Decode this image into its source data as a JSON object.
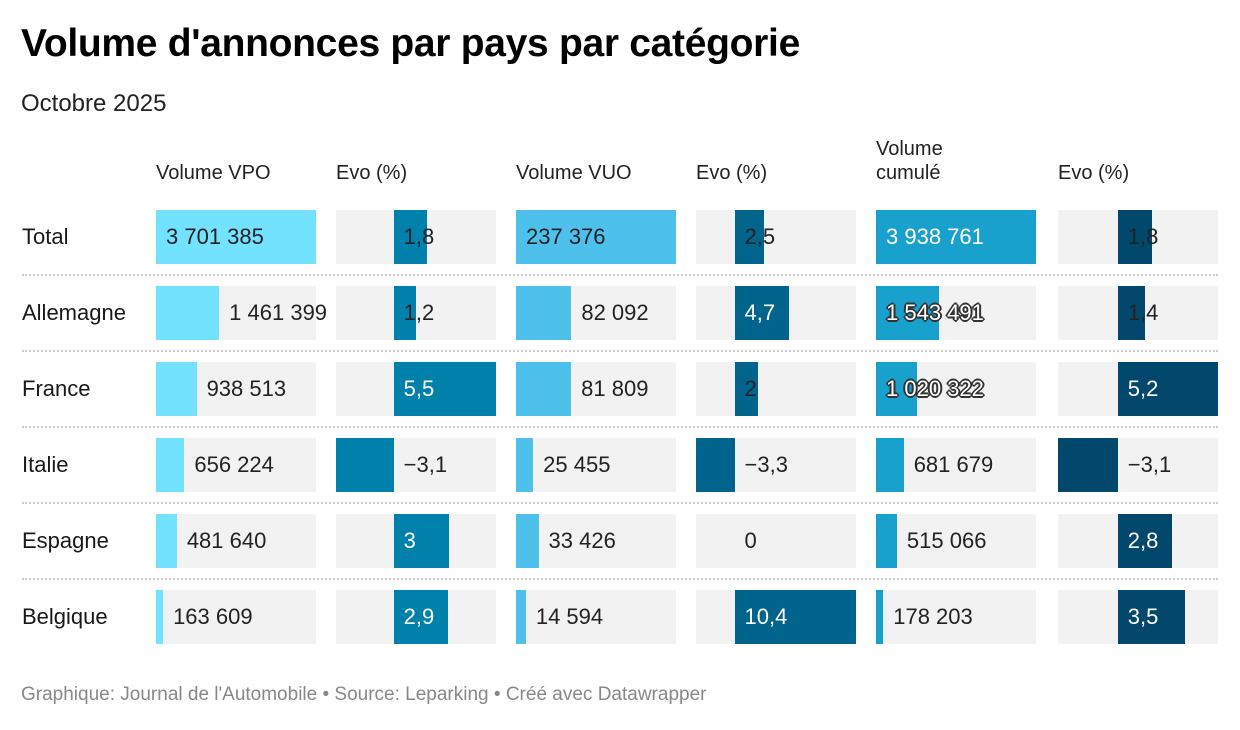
{
  "title": "Volume d'annonces par pays par catégorie",
  "subtitle": "Octobre 2025",
  "footer": "Graphique: Journal de l'Automobile • Source: Leparking • Créé avec Datawrapper",
  "chart_data": {
    "type": "table",
    "title": "Volume d'annonces par pays par catégorie",
    "subtitle": "Octobre 2025",
    "columns": [
      {
        "key": "vpo",
        "label": "Volume VPO",
        "kind": "volume",
        "color": "#73e2ff",
        "domain": [
          0,
          3701385
        ]
      },
      {
        "key": "evo_vpo",
        "label": "Evo (%)",
        "kind": "change",
        "color": "#0081ab",
        "domain": [
          -3.1,
          5.5
        ]
      },
      {
        "key": "vuo",
        "label": "Volume VUO",
        "kind": "volume",
        "color": "#4dc1ec",
        "domain": [
          0,
          237376
        ]
      },
      {
        "key": "evo_vuo",
        "label": "Evo (%)",
        "kind": "change",
        "color": "#00648d",
        "domain": [
          -3.3,
          10.4
        ]
      },
      {
        "key": "cumul",
        "label": "Volume cumulé",
        "kind": "volume",
        "color": "#18a1cd",
        "domain": [
          0,
          3938761
        ]
      },
      {
        "key": "evo_cumul",
        "label": "Evo (%)",
        "kind": "change",
        "color": "#02476c",
        "domain": [
          -3.1,
          5.2
        ]
      }
    ],
    "rows": [
      {
        "label": "Total",
        "vpo": 3701385,
        "evo_vpo": 1.8,
        "vuo": 237376,
        "evo_vuo": 2.5,
        "cumul": 3938761,
        "evo_cumul": 1.8
      },
      {
        "label": "Allemagne",
        "vpo": 1461399,
        "evo_vpo": 1.2,
        "vuo": 82092,
        "evo_vuo": 4.7,
        "cumul": 1543491,
        "evo_cumul": 1.4
      },
      {
        "label": "France",
        "vpo": 938513,
        "evo_vpo": 5.5,
        "vuo": 81809,
        "evo_vuo": 2,
        "cumul": 1020322,
        "evo_cumul": 5.2
      },
      {
        "label": "Italie",
        "vpo": 656224,
        "evo_vpo": -3.1,
        "vuo": 25455,
        "evo_vuo": -3.3,
        "cumul": 681679,
        "evo_cumul": -3.1
      },
      {
        "label": "Espagne",
        "vpo": 481640,
        "evo_vpo": 3,
        "vuo": 33426,
        "evo_vuo": 0,
        "cumul": 515066,
        "evo_cumul": 2.8
      },
      {
        "label": "Belgique",
        "vpo": 163609,
        "evo_vpo": 2.9,
        "vuo": 14594,
        "evo_vuo": 10.4,
        "cumul": 178203,
        "evo_cumul": 3.5
      }
    ],
    "display": [
      {
        "vpo": "3 701 385",
        "evo_vpo": "1,8",
        "vuo": "237 376",
        "evo_vuo": "2,5",
        "cumul": "3 938 761",
        "evo_cumul": "1,8"
      },
      {
        "vpo": "1 461 399",
        "evo_vpo": "1,2",
        "vuo": "82 092",
        "evo_vuo": "4,7",
        "cumul": "1 543 491",
        "evo_cumul": "1,4"
      },
      {
        "vpo": "938 513",
        "evo_vpo": "5,5",
        "vuo": "81 809",
        "evo_vuo": "2",
        "cumul": "1 020 322",
        "evo_cumul": "5,2"
      },
      {
        "vpo": "656 224",
        "evo_vpo": "−3,1",
        "vuo": "25 455",
        "evo_vuo": "−3,3",
        "cumul": "681 679",
        "evo_cumul": "−3,1"
      },
      {
        "vpo": "481 640",
        "evo_vpo": "3",
        "vuo": "33 426",
        "evo_vuo": "0",
        "cumul": "515 066",
        "evo_cumul": "2,8"
      },
      {
        "vpo": "163 609",
        "evo_vpo": "2,9",
        "vuo": "14 594",
        "evo_vuo": "10,4",
        "cumul": "178 203",
        "evo_cumul": "3,5"
      }
    ],
    "halo_labels": [
      [
        1,
        "cumul"
      ],
      [
        2,
        "cumul"
      ]
    ],
    "cell_background": "#f2f2f2"
  }
}
